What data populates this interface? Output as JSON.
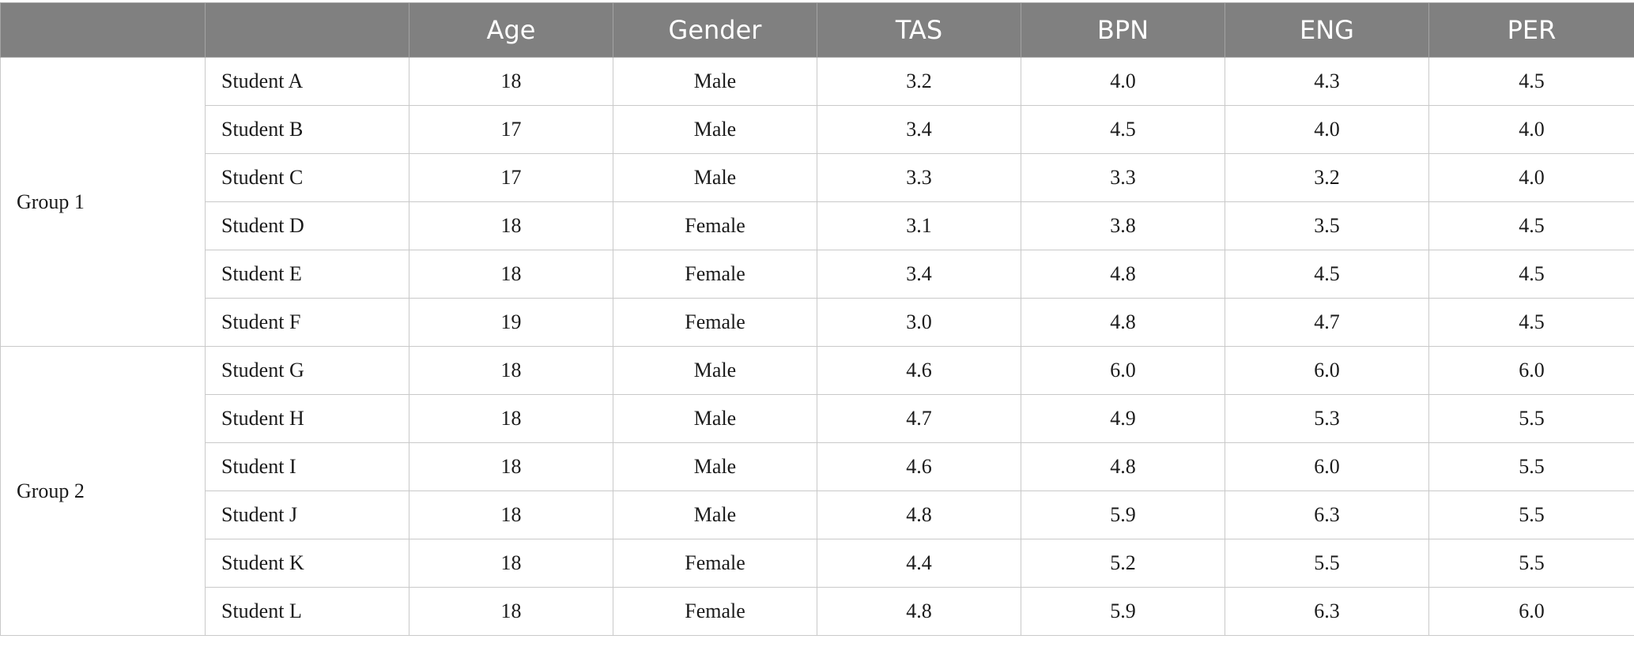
{
  "table": {
    "headers": [
      "",
      "",
      "Age",
      "Gender",
      "TAS",
      "BPN",
      "ENG",
      "PER"
    ],
    "groups": [
      {
        "label": "Group 1",
        "rows": [
          [
            "Student A",
            "18",
            "Male",
            "3.2",
            "4.0",
            "4.3",
            "4.5"
          ],
          [
            "Student B",
            "17",
            "Male",
            "3.4",
            "4.5",
            "4.0",
            "4.0"
          ],
          [
            "Student C",
            "17",
            "Male",
            "3.3",
            "3.3",
            "3.2",
            "4.0"
          ],
          [
            "Student D",
            "18",
            "Female",
            "3.1",
            "3.8",
            "3.5",
            "4.5"
          ],
          [
            "Student E",
            "18",
            "Female",
            "3.4",
            "4.8",
            "4.5",
            "4.5"
          ],
          [
            "Student F",
            "19",
            "Female",
            "3.0",
            "4.8",
            "4.7",
            "4.5"
          ]
        ]
      },
      {
        "label": "Group 2",
        "rows": [
          [
            "Student G",
            "18",
            "Male",
            "4.6",
            "6.0",
            "6.0",
            "6.0"
          ],
          [
            "Student H",
            "18",
            "Male",
            "4.7",
            "4.9",
            "5.3",
            "5.5"
          ],
          [
            "Student I",
            "18",
            "Male",
            "4.6",
            "4.8",
            "6.0",
            "5.5"
          ],
          [
            "Student J",
            "18",
            "Male",
            "4.8",
            "5.9",
            "6.3",
            "5.5"
          ],
          [
            "Student K",
            "18",
            "Female",
            "4.4",
            "5.2",
            "5.5",
            "5.5"
          ],
          [
            "Student L",
            "18",
            "Female",
            "4.8",
            "5.9",
            "6.3",
            "6.0"
          ]
        ]
      }
    ]
  }
}
